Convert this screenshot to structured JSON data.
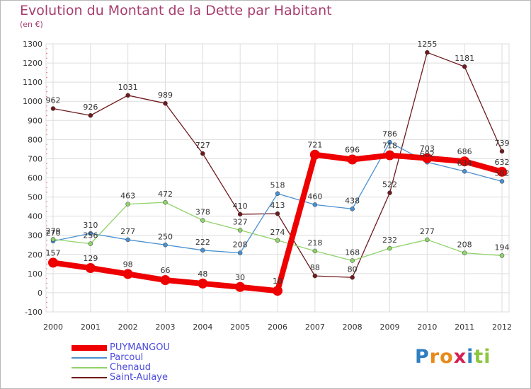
{
  "header": {
    "title": "Evolution du Montant de la Dette par Habitant",
    "subtitle": "(en €)"
  },
  "brand": {
    "logo_text": "Proxiti",
    "letters": [
      "P",
      "r",
      "o",
      "x",
      "i",
      "t",
      "i"
    ],
    "letter_colors": [
      "#2f7fc1",
      "#e88a1a",
      "#e88a1a",
      "#d61f52",
      "#2f7fc1",
      "#8cc63f",
      "#8cc63f"
    ]
  },
  "chart_data": {
    "type": "line",
    "x": [
      "2000",
      "2001",
      "2002",
      "2003",
      "2004",
      "2005",
      "2006",
      "2007",
      "2008",
      "2009",
      "2010",
      "2011",
      "2012"
    ],
    "ylim": [
      -100,
      1300
    ],
    "yticks": [
      -100,
      0,
      100,
      200,
      300,
      400,
      500,
      600,
      700,
      800,
      900,
      1000,
      1100,
      1200,
      1300
    ],
    "grid": true,
    "legend_position": "bottom-left",
    "series": [
      {
        "name": "Saint-Aulaye",
        "color": "#6e1a1e",
        "width": 1.3,
        "values": [
          962,
          926,
          1031,
          989,
          727,
          410,
          413,
          88,
          80,
          522,
          1255,
          1181,
          739
        ],
        "labels": [
          "962",
          "926",
          "1031",
          "989",
          "727",
          "410",
          "413",
          "88",
          "80",
          "522",
          "1255",
          "1181",
          "739"
        ]
      },
      {
        "name": "Parcoul",
        "color": "#4a90d0",
        "width": 1.3,
        "values": [
          270,
          310,
          277,
          250,
          222,
          208,
          518,
          460,
          438,
          786,
          682,
          634,
          582
        ],
        "labels": [
          "270",
          "310",
          "277",
          "250",
          "222",
          "208",
          "518",
          "460",
          "438",
          "786",
          "682",
          "634",
          "582"
        ]
      },
      {
        "name": "Chenaud",
        "color": "#8fd36a",
        "width": 1.3,
        "values": [
          279,
          256,
          463,
          472,
          378,
          327,
          274,
          218,
          168,
          232,
          277,
          208,
          194
        ],
        "labels": [
          "279",
          "256",
          "463",
          "472",
          "378",
          "327",
          "274",
          "218",
          "168",
          "232",
          "277",
          "208",
          "194"
        ]
      },
      {
        "name": "PUYMANGOU",
        "color": "#ee0000",
        "width": 8,
        "values": [
          157,
          129,
          98,
          66,
          48,
          30,
          10,
          721,
          696,
          718,
          703,
          686,
          632
        ],
        "labels": [
          "157",
          "129",
          "98",
          "66",
          "48",
          "30",
          "10",
          "721",
          "696",
          "718",
          "703",
          "686",
          "632"
        ]
      }
    ]
  },
  "legend": {
    "items": [
      {
        "label": "PUYMANGOU",
        "color": "#ee0000",
        "thickness": 8
      },
      {
        "label": "Parcoul",
        "color": "#4a90d0",
        "thickness": 2
      },
      {
        "label": "Chenaud",
        "color": "#8fd36a",
        "thickness": 2
      },
      {
        "label": "Saint-Aulaye",
        "color": "#6e1a1e",
        "thickness": 2
      }
    ]
  }
}
